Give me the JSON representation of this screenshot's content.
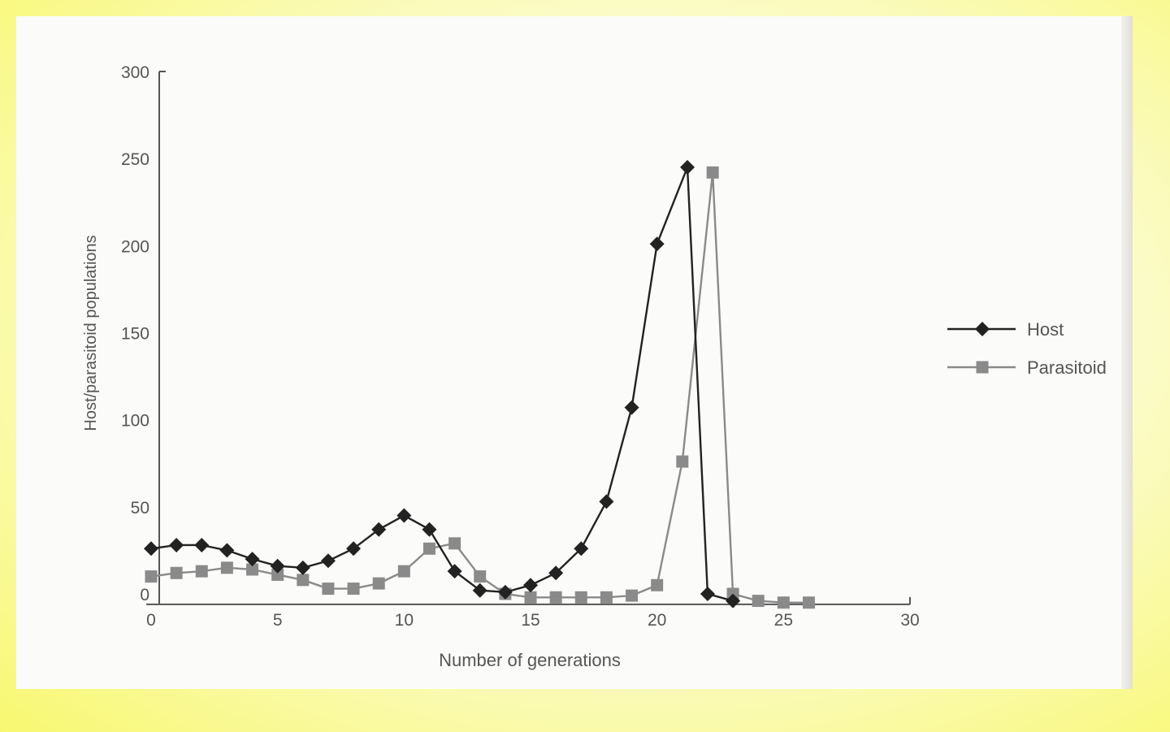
{
  "chart_data": {
    "type": "line",
    "xlabel": "Number of generations",
    "ylabel": "Host/parasitoid populations",
    "xlim": [
      0,
      30
    ],
    "ylim": [
      0,
      300
    ],
    "x_ticks": [
      0,
      5,
      10,
      15,
      20,
      25,
      30
    ],
    "y_ticks": [
      0,
      50,
      100,
      150,
      200,
      250,
      300
    ],
    "grid": false,
    "legend_position": "right",
    "series": [
      {
        "name": "Host",
        "color": "#222222",
        "marker": "diamond",
        "x": [
          0,
          1,
          2,
          3,
          4,
          5,
          6,
          7,
          8,
          9,
          10,
          11,
          12,
          13,
          14,
          15,
          16,
          17,
          18,
          19,
          20,
          21.2,
          22,
          23
        ],
        "y": [
          26,
          28,
          28,
          25,
          20,
          16,
          15,
          19,
          26,
          37,
          45,
          37,
          13,
          2,
          1,
          5,
          12,
          26,
          53,
          107,
          201,
          245,
          0,
          -4
        ]
      },
      {
        "name": "Parasitoid",
        "color": "#8a8a8a",
        "marker": "square",
        "x": [
          0,
          1,
          2,
          3,
          4,
          5,
          6,
          7,
          8,
          9,
          10,
          11,
          12,
          13,
          14,
          15,
          16,
          17,
          18,
          19,
          20,
          21,
          22.2,
          23,
          24,
          25,
          26
        ],
        "y": [
          10,
          12,
          13,
          15,
          14,
          11,
          8,
          3,
          3,
          6,
          13,
          26,
          29,
          10,
          0,
          -2,
          -2,
          -2,
          -2,
          -1,
          5,
          76,
          242,
          0,
          -4,
          -5,
          -5
        ]
      }
    ]
  }
}
